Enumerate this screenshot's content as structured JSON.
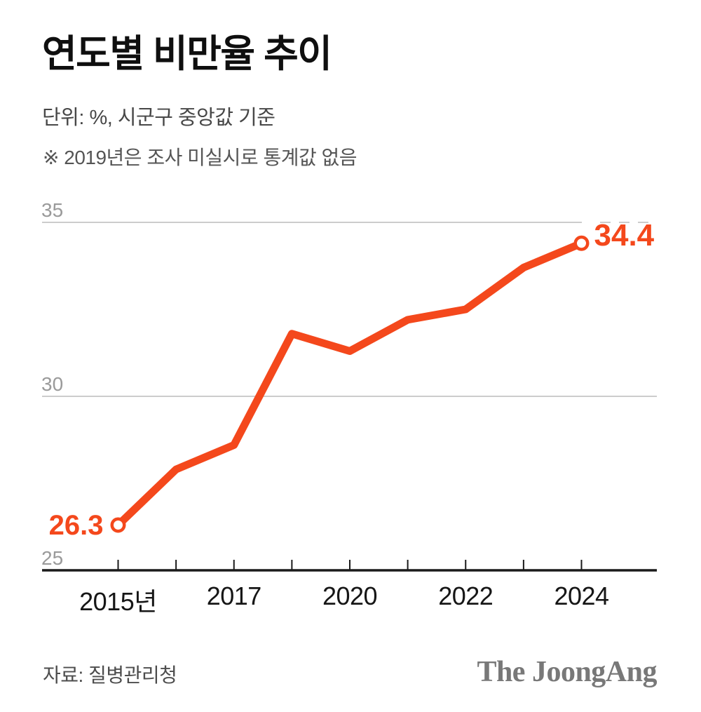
{
  "header": {
    "title": "연도별 비만율 추이",
    "subtitle": "단위: %, 시군구 중앙값 기준",
    "note": "※ 2019년은 조사 미실시로 통계값 없음"
  },
  "chart_data": {
    "type": "line",
    "title": "연도별 비만율 추이",
    "unit": "%",
    "categories": [
      "2015",
      "2016",
      "2017",
      "2018",
      "2020",
      "2021",
      "2022",
      "2023",
      "2024"
    ],
    "values": [
      26.3,
      27.9,
      28.6,
      31.8,
      31.3,
      32.2,
      32.5,
      33.7,
      34.4
    ],
    "x_tick_labels": [
      {
        "index": 0,
        "label": "2015년"
      },
      {
        "index": 2,
        "label": "2017"
      },
      {
        "index": 4,
        "label": "2020"
      },
      {
        "index": 6,
        "label": "2022"
      },
      {
        "index": 8,
        "label": "2024"
      }
    ],
    "y_ticks": [
      35,
      30,
      25
    ],
    "ylim": [
      25,
      35
    ],
    "grid": "horizontal",
    "legend": "none",
    "line_color": "#f4481c",
    "axis_color": "#1a1a1a",
    "grid_color": "#cccccc",
    "marker_point_indexes": [
      0,
      8
    ],
    "endpoint_labels": {
      "first": "26.3",
      "last": "34.4"
    }
  },
  "footer": {
    "source": "자료: 질병관리청",
    "brand": "The JoongAng"
  }
}
